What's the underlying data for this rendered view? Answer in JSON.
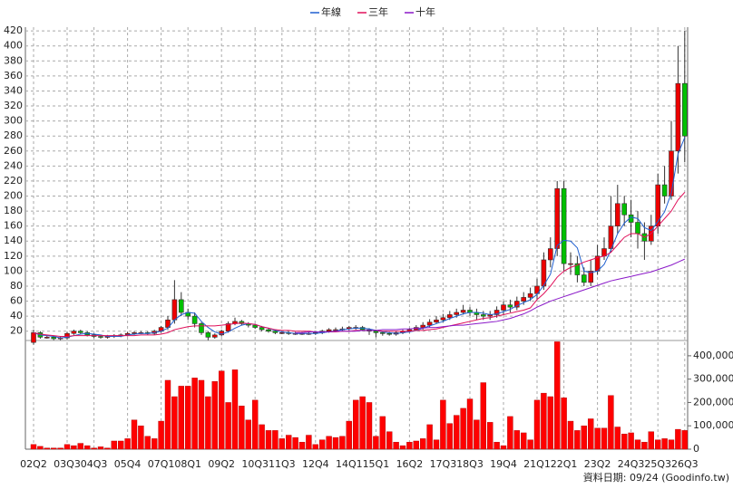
{
  "chart_data": [
    {
      "type": "candlestick",
      "categories": [
        "02Q2",
        null,
        null,
        null,
        null,
        "03Q3",
        null,
        null,
        null,
        "04Q3",
        null,
        null,
        null,
        null,
        "05Q4",
        null,
        null,
        null,
        null,
        "07Q1",
        null,
        null,
        null,
        "08Q1",
        null,
        null,
        null,
        null,
        "09Q2",
        null,
        null,
        null,
        null,
        "10Q3",
        null,
        null,
        null,
        "11Q3",
        null,
        null,
        null,
        null,
        "12Q4",
        null,
        null,
        null,
        null,
        "14Q1",
        null,
        null,
        null,
        "15Q1",
        null,
        null,
        null,
        null,
        "16Q2",
        null,
        null,
        null,
        null,
        "17Q3",
        null,
        null,
        null,
        "18Q3",
        null,
        null,
        null,
        null,
        "19Q4",
        null,
        null,
        null,
        null,
        "21Q1",
        null,
        null,
        null,
        "22Q1",
        null,
        null,
        null,
        null,
        "23Q2",
        null,
        null,
        null,
        null,
        "24Q3",
        null,
        null,
        null,
        "25Q3",
        null,
        null,
        null,
        "26Q3"
      ],
      "open": [
        5,
        18,
        12,
        12,
        10,
        11,
        17,
        20,
        18,
        15,
        13,
        12,
        13,
        14,
        15,
        17,
        18,
        18,
        17,
        20,
        25,
        35,
        62,
        45,
        40,
        30,
        18,
        12,
        15,
        20,
        30,
        33,
        30,
        28,
        25,
        22,
        20,
        18,
        18,
        17,
        17,
        17,
        17,
        18,
        20,
        22,
        22,
        23,
        25,
        25,
        22,
        20,
        18,
        17,
        16,
        18,
        20,
        22,
        25,
        28,
        32,
        35,
        38,
        42,
        45,
        48,
        45,
        42,
        40,
        42,
        48,
        55,
        52,
        60,
        65,
        70,
        80,
        115,
        130,
        210,
        110,
        110,
        95,
        85,
        100,
        120,
        130,
        160,
        190,
        175,
        165,
        150,
        140,
        160,
        215,
        200,
        260,
        350
      ],
      "high": [
        22,
        20,
        14,
        14,
        13,
        19,
        22,
        22,
        20,
        17,
        15,
        15,
        16,
        17,
        19,
        20,
        20,
        20,
        22,
        27,
        40,
        88,
        72,
        50,
        45,
        32,
        20,
        17,
        22,
        33,
        38,
        35,
        32,
        30,
        27,
        24,
        22,
        20,
        20,
        19,
        19,
        19,
        20,
        22,
        24,
        25,
        26,
        27,
        28,
        27,
        24,
        22,
        20,
        19,
        20,
        22,
        24,
        28,
        32,
        36,
        40,
        43,
        47,
        50,
        55,
        52,
        50,
        47,
        47,
        53,
        60,
        62,
        66,
        72,
        78,
        90,
        125,
        145,
        220,
        220,
        125,
        120,
        105,
        115,
        135,
        145,
        200,
        215,
        200,
        195,
        180,
        165,
        175,
        230,
        240,
        300,
        400,
        420
      ],
      "low": [
        2,
        10,
        10,
        8,
        8,
        9,
        15,
        16,
        13,
        11,
        10,
        10,
        11,
        12,
        13,
        15,
        16,
        15,
        15,
        18,
        22,
        30,
        40,
        35,
        25,
        15,
        8,
        10,
        13,
        18,
        28,
        28,
        25,
        23,
        20,
        18,
        16,
        16,
        15,
        15,
        15,
        15,
        15,
        16,
        18,
        20,
        20,
        21,
        22,
        20,
        15,
        12,
        14,
        14,
        14,
        16,
        18,
        20,
        22,
        25,
        30,
        32,
        35,
        38,
        42,
        40,
        35,
        35,
        35,
        38,
        42,
        45,
        48,
        55,
        60,
        62,
        75,
        105,
        120,
        100,
        95,
        85,
        80,
        80,
        95,
        115,
        125,
        150,
        160,
        145,
        130,
        115,
        135,
        150,
        190,
        195,
        230,
        245
      ],
      "close": [
        18,
        12,
        12,
        10,
        11,
        17,
        20,
        18,
        15,
        13,
        12,
        13,
        14,
        15,
        17,
        18,
        18,
        17,
        20,
        25,
        35,
        62,
        45,
        40,
        30,
        18,
        12,
        15,
        20,
        30,
        33,
        30,
        28,
        25,
        22,
        20,
        18,
        18,
        17,
        17,
        17,
        17,
        18,
        20,
        22,
        22,
        23,
        25,
        25,
        22,
        20,
        18,
        17,
        16,
        18,
        20,
        22,
        25,
        28,
        32,
        35,
        38,
        42,
        45,
        48,
        45,
        42,
        40,
        42,
        48,
        55,
        52,
        60,
        65,
        70,
        80,
        115,
        130,
        210,
        110,
        110,
        95,
        85,
        100,
        120,
        130,
        160,
        190,
        175,
        165,
        150,
        140,
        160,
        215,
        200,
        260,
        350,
        280
      ],
      "up_color": "#ee0000",
      "down_color": "#00c000",
      "series": [
        {
          "name": "年線",
          "color": "#1f5fd0",
          "values": [
            18,
            15,
            14,
            13,
            11,
            12,
            14,
            16,
            17,
            16,
            15,
            13,
            13,
            13,
            15,
            16,
            17,
            17,
            18,
            20,
            24,
            35,
            42,
            45,
            44,
            33,
            25,
            19,
            16,
            19,
            24,
            28,
            30,
            29,
            26,
            24,
            21,
            19,
            18,
            17,
            17,
            17,
            17,
            18,
            19,
            20,
            22,
            23,
            24,
            24,
            23,
            21,
            19,
            18,
            17,
            18,
            19,
            21,
            24,
            27,
            30,
            33,
            37,
            40,
            43,
            45,
            45,
            44,
            42,
            43,
            46,
            49,
            54,
            58,
            62,
            69,
            81,
            96,
            134,
            141,
            140,
            131,
            100,
            98,
            100,
            109,
            128,
            150,
            164,
            172,
            170,
            158,
            154,
            166,
            179,
            204,
            256,
            278
          ]
        },
        {
          "name": "三年",
          "color": "#e0105a",
          "values": [
            18,
            16,
            15,
            14,
            13,
            13,
            14,
            14,
            14,
            14,
            14,
            14,
            14,
            14,
            14,
            14,
            15,
            15,
            15,
            16,
            18,
            22,
            24,
            26,
            27,
            27,
            27,
            27,
            28,
            29,
            30,
            31,
            30,
            29,
            26,
            24,
            22,
            21,
            21,
            20,
            20,
            20,
            19,
            19,
            19,
            19,
            20,
            20,
            21,
            21,
            21,
            21,
            20,
            20,
            20,
            20,
            20,
            21,
            21,
            22,
            23,
            25,
            27,
            29,
            31,
            33,
            35,
            37,
            38,
            40,
            42,
            44,
            46,
            48,
            51,
            62,
            70,
            80,
            92,
            100,
            105,
            108,
            112,
            115,
            118,
            120,
            125,
            135,
            145,
            150,
            150,
            145,
            150,
            160,
            170,
            180,
            195,
            205
          ]
        },
        {
          "name": "十年",
          "color": "#8a18c8",
          "values": [
            null,
            null,
            null,
            null,
            null,
            null,
            null,
            null,
            null,
            null,
            null,
            null,
            null,
            null,
            null,
            null,
            null,
            null,
            null,
            null,
            null,
            null,
            null,
            null,
            null,
            null,
            null,
            null,
            null,
            null,
            null,
            null,
            null,
            null,
            null,
            null,
            null,
            null,
            null,
            18,
            18,
            19,
            19,
            19,
            19,
            20,
            20,
            20,
            20,
            21,
            21,
            21,
            22,
            22,
            22,
            23,
            23,
            24,
            24,
            25,
            25,
            26,
            27,
            28,
            28,
            29,
            30,
            31,
            32,
            33,
            35,
            37,
            40,
            43,
            47,
            52,
            56,
            60,
            63,
            66,
            69,
            72,
            75,
            78,
            81,
            84,
            87,
            89,
            91,
            93,
            95,
            97,
            99,
            102,
            105,
            108,
            112,
            116
          ]
        }
      ],
      "ylim": [
        10,
        425
      ],
      "yticks": [
        20,
        40,
        60,
        80,
        100,
        120,
        140,
        160,
        180,
        200,
        220,
        240,
        260,
        280,
        300,
        320,
        340,
        360,
        380,
        400,
        420
      ],
      "grid": true,
      "legend": "top"
    },
    {
      "type": "bar",
      "color": "#ff0000",
      "values": [
        20000,
        12000,
        5000,
        5000,
        5000,
        20000,
        15000,
        25000,
        15000,
        5000,
        10000,
        5000,
        35000,
        35000,
        45000,
        125000,
        100000,
        55000,
        45000,
        120000,
        295000,
        225000,
        270000,
        270000,
        305000,
        295000,
        225000,
        290000,
        335000,
        200000,
        340000,
        185000,
        125000,
        210000,
        105000,
        80000,
        80000,
        45000,
        60000,
        50000,
        30000,
        60000,
        20000,
        40000,
        55000,
        50000,
        55000,
        120000,
        210000,
        225000,
        200000,
        55000,
        140000,
        75000,
        30000,
        15000,
        30000,
        35000,
        45000,
        105000,
        40000,
        210000,
        110000,
        145000,
        175000,
        215000,
        125000,
        285000,
        115000,
        30000,
        15000,
        140000,
        80000,
        70000,
        40000,
        210000,
        240000,
        225000,
        460000,
        220000,
        120000,
        80000,
        100000,
        130000,
        90000,
        90000,
        230000,
        95000,
        65000,
        70000,
        40000,
        30000,
        75000,
        40000,
        45000,
        40000,
        85000,
        80000
      ],
      "ylim": [
        0,
        450000
      ],
      "yticks": [
        0,
        {
          "value": 100000,
          "label": "100,000"
        },
        {
          "value": 200000,
          "label": "200,000"
        },
        {
          "value": 300000,
          "label": "300,000"
        },
        {
          "value": 400000,
          "label": "400,000"
        }
      ]
    }
  ],
  "footer": "資料日期: 09/24 (Goodinfo.tw)"
}
